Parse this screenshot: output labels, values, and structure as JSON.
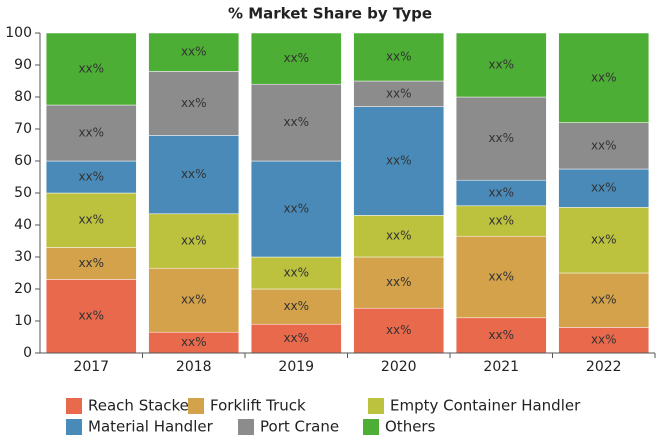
{
  "chart_data": {
    "type": "stacked-bar",
    "title": "% Market Share by Type",
    "categories": [
      "2017",
      "2018",
      "2019",
      "2020",
      "2021",
      "2022"
    ],
    "series": [
      {
        "name": "Reach Stacker",
        "color": "#e9694d",
        "values": [
          23,
          6.5,
          9,
          14,
          11,
          8
        ],
        "value_labels": [
          "xx%",
          "xx%",
          "xx%",
          "xx%",
          "xx%",
          "xx%"
        ]
      },
      {
        "name": "Forklift Truck",
        "color": "#d4a24a",
        "values": [
          10,
          20,
          11,
          16,
          25.5,
          17
        ],
        "value_labels": [
          "xx%",
          "xx%",
          "xx%",
          "xx%",
          "xx%",
          "xx%"
        ]
      },
      {
        "name": "Empty Container Handler",
        "color": "#bcc23e",
        "values": [
          17,
          17,
          10,
          13,
          9.5,
          20.5
        ],
        "value_labels": [
          "xx%",
          "xx%",
          "xx%",
          "xx%",
          "xx%",
          "xx%"
        ]
      },
      {
        "name": "Material Handler",
        "color": "#4a8ab8",
        "values": [
          10,
          24.5,
          30,
          34,
          8,
          12
        ],
        "value_labels": [
          "xx%",
          "xx%",
          "xx%",
          "xx%",
          "xx%",
          "xx%"
        ]
      },
      {
        "name": "Port Crane",
        "color": "#8c8c8c",
        "values": [
          17.5,
          20,
          24,
          8,
          26,
          14.5
        ],
        "value_labels": [
          "xx%",
          "xx%",
          "xx%",
          "xx%",
          "xx%",
          "xx%"
        ]
      },
      {
        "name": "Others",
        "color": "#4cae34",
        "values": [
          22.5,
          12,
          16,
          15,
          20,
          28
        ],
        "value_labels": [
          "xx%",
          "xx%",
          "xx%",
          "xx%",
          "xx%",
          "xx%"
        ]
      }
    ],
    "ylim": [
      0,
      100
    ],
    "yticks": [
      0,
      10,
      20,
      30,
      40,
      50,
      60,
      70,
      80,
      90,
      100
    ],
    "grid": false
  }
}
